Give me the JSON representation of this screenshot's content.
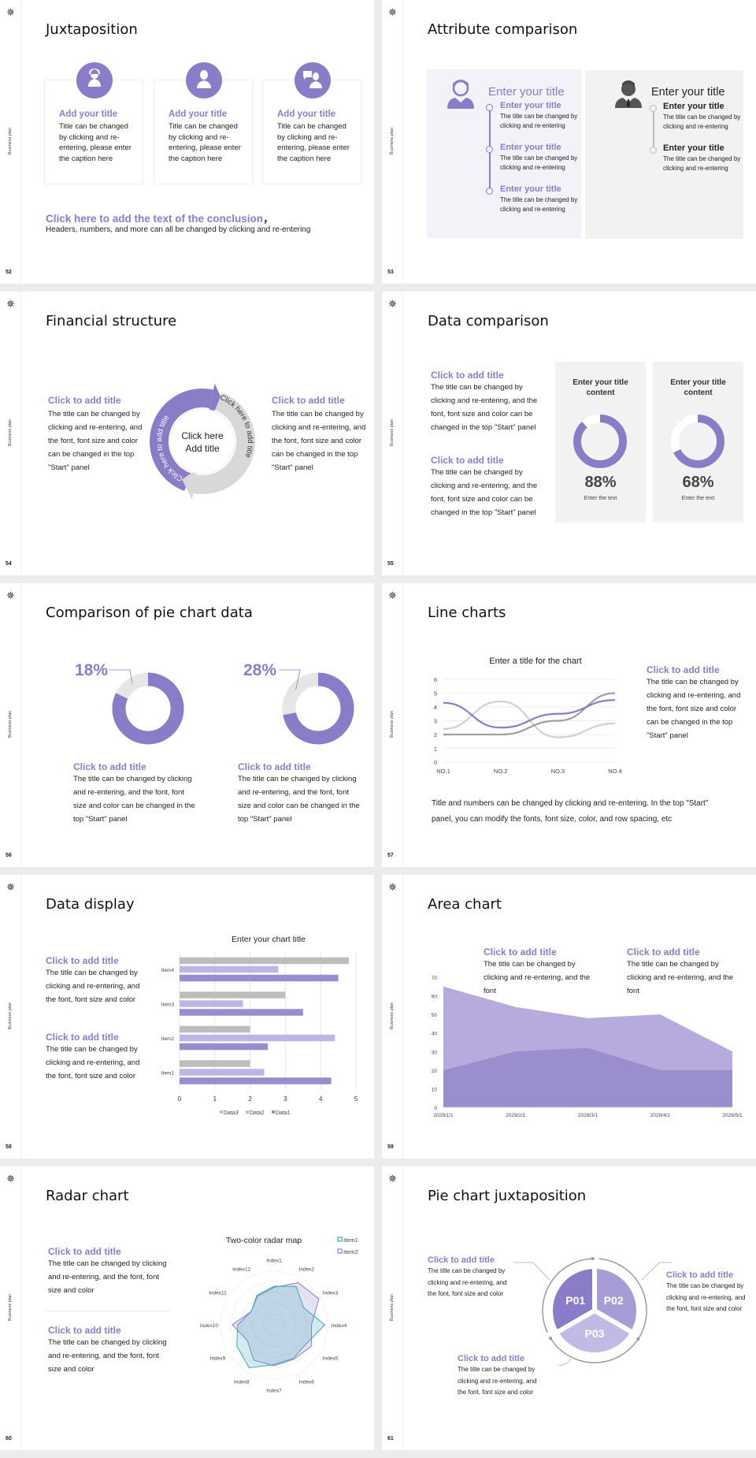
{
  "sidebar_label": "Business plan",
  "logo_icon": "emblem-icon",
  "colors": {
    "purple": "#8a7cc7",
    "purple_light": "#b7ade0",
    "purple_pale": "#c2b9e5",
    "gray": "#bdbdbd",
    "gray_dark": "#9e9e9e",
    "teal": "#3aa8b8",
    "panel_purple": "#f3f2f9",
    "panel_gray": "#f2f2f2"
  },
  "s52": {
    "number": "52",
    "title": "Juxtaposition",
    "cards": [
      {
        "icon": "headset-user-icon",
        "title": "Add your title",
        "body": "Title can be changed by clicking and re-entering, please enter the caption here"
      },
      {
        "icon": "female-user-icon",
        "title": "Add your title",
        "body": "Title can be changed by clicking and re-entering, please enter the caption here"
      },
      {
        "icon": "chat-user-icon",
        "title": "Add your title",
        "body": "Title can be changed by clicking and re-entering, please enter the caption here"
      }
    ],
    "conclusion_title": "Click here to add the text of the conclusion",
    "conclusion_comma": "，",
    "conclusion_body": "Headers, numbers, and more can all be changed by clicking and re-entering"
  },
  "s53": {
    "number": "53",
    "title": "Attribute comparison",
    "left": {
      "heading": "Enter your title",
      "items": [
        {
          "title": "Enter your title",
          "body": "The title can be changed by clicking and re-entering"
        },
        {
          "title": "Enter your title",
          "body": "The title can be changed by clicking and re-entering"
        },
        {
          "title": "Enter your title",
          "body": "The title can be changed by clicking and re-entering"
        }
      ]
    },
    "right": {
      "heading": "Enter your title",
      "items": [
        {
          "title": "Enter your title",
          "body": "The title can be changed by clicking and re-entering"
        },
        {
          "title": "Enter your title",
          "body": "The title can be changed by clicking and re-entering"
        }
      ]
    }
  },
  "s54": {
    "number": "54",
    "title": "Financial structure",
    "left": {
      "title": "Click to add title",
      "body": "The title can be changed by clicking and re-entering, and the font, font size and color can be changed in the top \"Start\" panel"
    },
    "right": {
      "title": "Click to add title",
      "body": "The title can be changed by clicking and re-entering, and the font, font size and color can be changed in the top \"Start\" panel"
    },
    "arc_left": "Click here to add title",
    "arc_right": "Click here to add title",
    "center": [
      "Click here",
      "Add title"
    ]
  },
  "s55": {
    "number": "55",
    "title": "Data comparison",
    "texts": [
      {
        "title": "Click to add title",
        "body": "The title can be changed by clicking and re-entering, and the font, font size and color can be changed in the top \"Start\" panel"
      },
      {
        "title": "Click to add title",
        "body": "The title can be changed by clicking and re-entering, and the font, font size and color can be changed in the top \"Start\" panel"
      }
    ],
    "cards": [
      {
        "title": "Enter your title content",
        "percent": 88,
        "label": "88%",
        "caption": "Enter the text"
      },
      {
        "title": "Enter your title content",
        "percent": 68,
        "label": "68%",
        "caption": "Enter the text"
      }
    ]
  },
  "s56": {
    "number": "56",
    "title": "Comparison of pie chart data",
    "items": [
      {
        "percent": 18,
        "label": "18%",
        "title": "Click to add title",
        "body": "The title can be changed by clicking and re-entering, and the font, font size and color can be changed in the top \"Start\" panel"
      },
      {
        "percent": 28,
        "label": "28%",
        "title": "Click to add title",
        "body": "The title can be changed by clicking and re-entering, and the font, font size and color can be changed in the top \"Start\" panel"
      }
    ]
  },
  "s57": {
    "number": "57",
    "title": "Line charts",
    "side": {
      "title": "Click to add title",
      "body": "The title can be changed by clicking and re-entering, and the font, font size and color can be changed in the top \"Start\" panel"
    },
    "note": "Title and numbers can be changed by clicking and re-entering. In the top \"Start\" panel, you can modify the fonts, font size, color, and row spacing, etc"
  },
  "s58": {
    "number": "58",
    "title": "Data display",
    "texts": [
      {
        "title": "Click to add title",
        "body": "The title can be changed by clicking and re-entering, and the font, font size and color"
      },
      {
        "title": "Click to add title",
        "body": "The title can be changed by clicking and re-entering, and the font, font size and color"
      }
    ]
  },
  "s59": {
    "number": "59",
    "title": "Area chart",
    "texts": [
      {
        "title": "Click to add title",
        "body": "The title can be changed by clicking and re-entering, and the font"
      },
      {
        "title": "Click to add title",
        "body": "The title can be changed by clicking and re-entering, and the font"
      }
    ]
  },
  "s60": {
    "number": "60",
    "title": "Radar chart",
    "texts": [
      {
        "title": "Click to add title",
        "body": "The title can be changed by clicking and re-entering, and the font, font size and color"
      },
      {
        "title": "Click to add title",
        "body": "The title can be changed by clicking and re-entering, and the font, font size and color"
      }
    ]
  },
  "s61": {
    "number": "61",
    "title": "Pie chart juxtaposition",
    "segments": [
      "P01",
      "P02",
      "P03"
    ],
    "texts": [
      {
        "title": "Click to add title",
        "body": "The title can be changed by clicking and re-entering, and the font, font size and color"
      },
      {
        "title": "Click to add title",
        "body": "The title can be changed by clicking and re-entering, and the font, font size and color"
      },
      {
        "title": "Click to add title",
        "body": "The title can be changed by clicking and re-entering, and the font, font size and color"
      }
    ]
  },
  "chart_data": [
    {
      "type": "line",
      "title": "Enter a title for the chart",
      "categories": [
        "NO.1",
        "NO.2",
        "NO.3",
        "NO.4"
      ],
      "ylim": [
        0,
        6
      ],
      "yticks": [
        0,
        1,
        2,
        3,
        4,
        5,
        6
      ],
      "grid": true,
      "smooth": true,
      "series": [
        {
          "values": [
            4.3,
            2.5,
            3.5,
            4.5
          ],
          "color": "#8a7cc7"
        },
        {
          "values": [
            2.4,
            4.4,
            1.8,
            2.8
          ],
          "color": "#d0d0d0"
        },
        {
          "values": [
            2.0,
            2.0,
            3.0,
            5.0
          ],
          "color": "#9e9e9e"
        }
      ]
    },
    {
      "type": "bar",
      "orientation": "horizontal",
      "title": "Enter your chart title",
      "categories": [
        "Item1",
        "Item2",
        "Item3",
        "Item4"
      ],
      "xlim": [
        0,
        5
      ],
      "xticks": [
        0,
        1,
        2,
        3,
        4,
        5
      ],
      "grid": true,
      "legend": "bottom",
      "series": [
        {
          "name": "Data3",
          "values": [
            2,
            2,
            3,
            4.8
          ],
          "color": "#bdbdbd"
        },
        {
          "name": "Data2",
          "values": [
            2.4,
            4.4,
            1.8,
            2.8
          ],
          "color": "#bfb5e4"
        },
        {
          "name": "Data1",
          "values": [
            4.3,
            2.5,
            3.5,
            4.5
          ],
          "color": "#9a8cd0"
        }
      ]
    },
    {
      "type": "area",
      "categories": [
        "2029/1/1",
        "2029/2/1",
        "2029/3/1",
        "2029/4/1",
        "2029/5/1"
      ],
      "ylim": [
        0,
        70
      ],
      "yticks": [
        0,
        10,
        20,
        30,
        40,
        50,
        60,
        70
      ],
      "series": [
        {
          "values": [
            65,
            54,
            48,
            50,
            30
          ],
          "color": "#b6abdc"
        },
        {
          "values": [
            20,
            30,
            32,
            20,
            20
          ],
          "color": "#9b8ecf"
        }
      ]
    },
    {
      "type": "radar",
      "title": "Two-color radar map",
      "categories": [
        "Index1",
        "Index2",
        "Index3",
        "Index4",
        "Index5",
        "Index6",
        "Index7",
        "Index8",
        "Index9",
        "Index10",
        "Index11",
        "Index12"
      ],
      "rlim": [
        0,
        5
      ],
      "legend": "top-right",
      "series": [
        {
          "name": "Item1",
          "values": [
            3.5,
            4.0,
            3.1,
            4.6,
            3.4,
            3.5,
            3.6,
            4.5,
            3.9,
            3.3,
            2.4,
            3.1
          ],
          "color": "#3aa8b8"
        },
        {
          "name": "Item2",
          "values": [
            3.4,
            4.4,
            4.7,
            3.4,
            3.9,
            3.6,
            3.7,
            3.7,
            2.8,
            3.8,
            2.4,
            3.0
          ],
          "color": "#8a7cc7"
        }
      ]
    }
  ]
}
